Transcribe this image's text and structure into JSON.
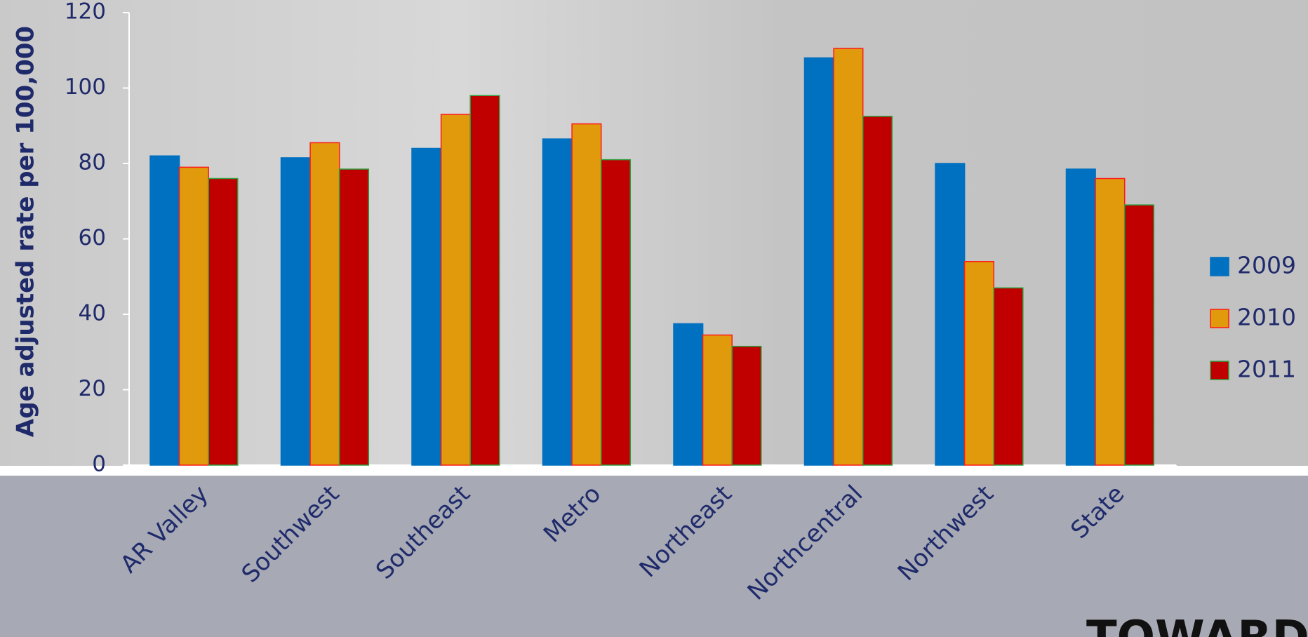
{
  "chart_data": {
    "type": "bar",
    "ylabel": "Age adjusted rate per 100,000",
    "categories": [
      "AR Valley",
      "Southwest",
      "Southeast",
      "Metro",
      "Northeast",
      "Northcentral",
      "Northwest",
      "State"
    ],
    "series": [
      {
        "name": "2009",
        "color": "#0070c0",
        "edgecolor": "#0070c0",
        "values": [
          82,
          81.5,
          84,
          86.5,
          37.5,
          108,
          80,
          78.5
        ]
      },
      {
        "name": "2010",
        "color": "#e09a0c",
        "edgecolor": "#ff1a1a",
        "values": [
          79,
          85.5,
          93,
          90.5,
          34.5,
          110.5,
          54,
          76
        ]
      },
      {
        "name": "2011",
        "color": "#c00000",
        "edgecolor": "#2e9e3e",
        "values": [
          76,
          78.5,
          98,
          81,
          31.5,
          92.5,
          47,
          69
        ]
      }
    ],
    "ylim": [
      0,
      120
    ],
    "yticks": [
      0,
      20,
      40,
      60,
      80,
      100,
      120
    ],
    "legend": "right"
  },
  "logo": "TOWARD"
}
